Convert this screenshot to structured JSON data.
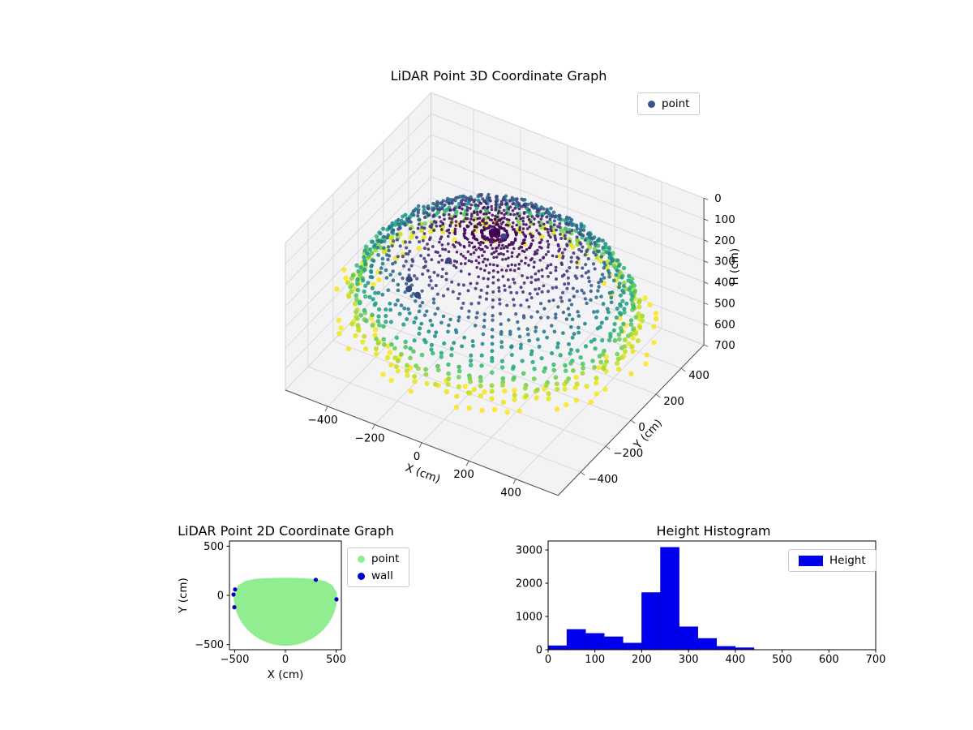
{
  "figure": {
    "background": "#ffffff"
  },
  "chart_data": [
    {
      "id": "lidar-3d",
      "type": "scatter",
      "projection": "3d",
      "title": "LiDAR Point 3D Coordinate Graph",
      "xlabel": "X (cm)",
      "ylabel": "Y (cm)",
      "zlabel": "H (cm)",
      "xlim": [
        -580,
        580
      ],
      "ylim": [
        -580,
        580
      ],
      "zlim": [
        0,
        700
      ],
      "zaxis_inverted": true,
      "xticks": [
        -400,
        -200,
        0,
        200,
        400
      ],
      "yticks": [
        -400,
        -200,
        0,
        200,
        400
      ],
      "zticks": [
        0,
        100,
        200,
        300,
        400,
        500,
        600,
        700
      ],
      "legend": [
        {
          "label": "point",
          "color": "#3b528b"
        }
      ],
      "colormap": "viridis",
      "colormap_stops": [
        "#440154",
        "#482475",
        "#414487",
        "#355f8d",
        "#2a788e",
        "#21918c",
        "#22a884",
        "#44bf70",
        "#7ad151",
        "#bddf26",
        "#fde725"
      ],
      "point_cloud": {
        "shape": "dome",
        "radius_cm": 540,
        "apex_h_cm": 60,
        "base_h_cm": 455,
        "rings": 26,
        "spokes": 80,
        "dropout": 0.2,
        "floor_rings": [
          {
            "radius_cm": 600,
            "h_cm": 455
          },
          {
            "radius_cm": 480,
            "h_cm": 452
          }
        ]
      },
      "wall_points": {
        "color": "#313d7a",
        "points": [
          [
            60,
            -40,
            25
          ],
          [
            -300,
            -120,
            335
          ],
          [
            -280,
            -90,
            420
          ],
          [
            -180,
            -30,
            250
          ],
          [
            -290,
            -140,
            365
          ]
        ]
      }
    },
    {
      "id": "lidar-2d",
      "type": "scatter",
      "title": "LiDAR Point 2D Coordinate Graph",
      "xlabel": "X (cm)",
      "ylabel": "Y (cm)",
      "xlim": [
        -552,
        552
      ],
      "ylim": [
        -552,
        552
      ],
      "xticks": [
        -500,
        0,
        500
      ],
      "yticks": [
        -500,
        0,
        500
      ],
      "series": [
        {
          "name": "point",
          "color": "#90ee90",
          "region": {
            "shape": "half-disc",
            "radius_cm": 500,
            "top_edge": [
              [
                -497,
                20
              ],
              [
                -455,
                95
              ],
              [
                -390,
                135
              ],
              [
                -300,
                155
              ],
              [
                -180,
                163
              ],
              [
                -60,
                166
              ],
              [
                60,
                166
              ],
              [
                180,
                162
              ],
              [
                300,
                152
              ],
              [
                390,
                133
              ],
              [
                455,
                93
              ],
              [
                497,
                22
              ]
            ]
          }
        },
        {
          "name": "wall",
          "color": "#0000cd",
          "points": [
            [
              -512,
              8
            ],
            [
              -504,
              -120
            ],
            [
              -497,
              60
            ],
            [
              300,
              158
            ],
            [
              504,
              -40
            ]
          ]
        }
      ]
    },
    {
      "id": "height-histogram",
      "type": "bar",
      "title": "Height Histogram",
      "series": [
        {
          "name": "Height",
          "color": "#0000ee"
        }
      ],
      "bins": {
        "start": 0,
        "width": 40
      },
      "values": [
        120,
        610,
        490,
        390,
        200,
        1720,
        3080,
        690,
        340,
        100,
        60
      ],
      "xlim": [
        0,
        700
      ],
      "ylim": [
        0,
        3270
      ],
      "xticks": [
        0,
        100,
        200,
        300,
        400,
        500,
        600,
        700
      ],
      "yticks": [
        0,
        1000,
        2000,
        3000
      ]
    }
  ]
}
